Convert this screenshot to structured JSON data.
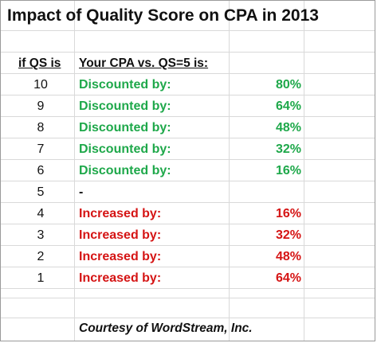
{
  "title": "Impact of Quality Score on CPA in 2013",
  "headers": {
    "qs": "if QS is",
    "cpa": "Your CPA vs. QS=5 is:"
  },
  "colors": {
    "discount": "#1ea84a",
    "increase": "#d51414",
    "grid": "#d9d9d9"
  },
  "rows": [
    {
      "qs": "10",
      "label": "Discounted by:",
      "value": "80%",
      "type": "discount"
    },
    {
      "qs": "9",
      "label": "Discounted by:",
      "value": "64%",
      "type": "discount"
    },
    {
      "qs": "8",
      "label": "Discounted by:",
      "value": "48%",
      "type": "discount"
    },
    {
      "qs": "7",
      "label": "Discounted by:",
      "value": "32%",
      "type": "discount"
    },
    {
      "qs": "6",
      "label": "Discounted by:",
      "value": "16%",
      "type": "discount"
    },
    {
      "qs": "5",
      "label": "-",
      "value": "",
      "type": "neutral"
    },
    {
      "qs": "4",
      "label": "Increased by:",
      "value": "16%",
      "type": "increase"
    },
    {
      "qs": "3",
      "label": "Increased by:",
      "value": "32%",
      "type": "increase"
    },
    {
      "qs": "2",
      "label": "Increased by:",
      "value": "48%",
      "type": "increase"
    },
    {
      "qs": "1",
      "label": "Increased by:",
      "value": "64%",
      "type": "increase"
    }
  ],
  "footer": "Courtesy of WordStream, Inc."
}
